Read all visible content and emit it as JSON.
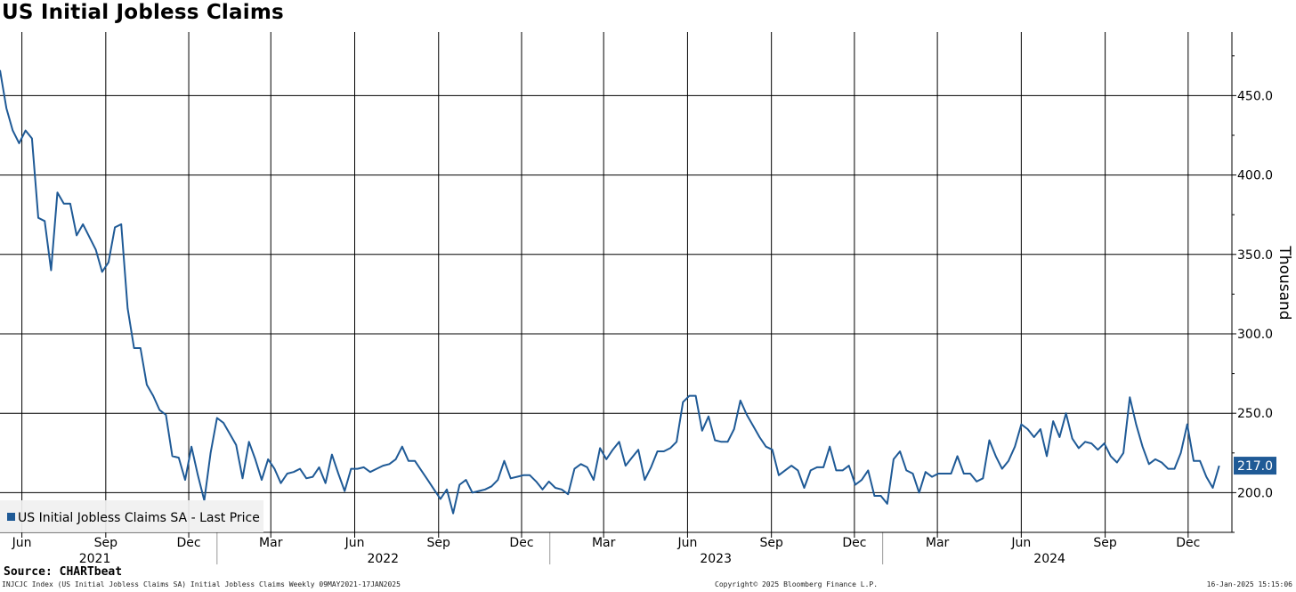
{
  "title": "US Initial Jobless Claims",
  "source": "Source: CHARTbeat",
  "footer": {
    "left": "INJCJC Index (US Initial Jobless Claims SA) Initial Jobless Claims  Weekly 09MAY2021-17JAN2025",
    "center": "Copyright© 2025 Bloomberg Finance L.P.",
    "right": "16-Jan-2025 15:15:06"
  },
  "colors": {
    "line": "#1f5a96",
    "grid": "#000000",
    "last_price_bg": "#1f5a96"
  },
  "chart_data": {
    "type": "line",
    "ylabel": "Thousand",
    "ylim": [
      175,
      490
    ],
    "y_ticks": [
      "450.0",
      "400.0",
      "350.0",
      "300.0",
      "250.0",
      "200.0"
    ],
    "y_tick_values": [
      450,
      400,
      350,
      300,
      250,
      200
    ],
    "x_range": [
      "2021-05-08",
      "2025-01-18"
    ],
    "grid": true,
    "legend": {
      "position": "bottom-left",
      "entries": [
        "US Initial Jobless Claims SA - Last Price"
      ]
    },
    "last_value_label": "217.0",
    "month_ticks": [
      {
        "label": "Jun",
        "date": "2021-06-01"
      },
      {
        "label": "Sep",
        "date": "2021-09-01"
      },
      {
        "label": "Dec",
        "date": "2021-12-01"
      },
      {
        "label": "Mar",
        "date": "2022-03-01"
      },
      {
        "label": "Jun",
        "date": "2022-06-01"
      },
      {
        "label": "Sep",
        "date": "2022-09-01"
      },
      {
        "label": "Dec",
        "date": "2022-12-01"
      },
      {
        "label": "Mar",
        "date": "2023-03-01"
      },
      {
        "label": "Jun",
        "date": "2023-06-01"
      },
      {
        "label": "Sep",
        "date": "2023-09-01"
      },
      {
        "label": "Dec",
        "date": "2023-12-01"
      },
      {
        "label": "Mar",
        "date": "2024-03-01"
      },
      {
        "label": "Jun",
        "date": "2024-06-01"
      },
      {
        "label": "Sep",
        "date": "2024-09-01"
      },
      {
        "label": "Dec",
        "date": "2024-12-01"
      }
    ],
    "year_labels": [
      {
        "label": "2021",
        "date": "2021-08-20"
      },
      {
        "label": "2022",
        "date": "2022-07-02"
      },
      {
        "label": "2023",
        "date": "2023-07-02"
      },
      {
        "label": "2024",
        "date": "2024-07-02"
      }
    ],
    "year_separators": [
      "2022-01-01",
      "2023-01-01",
      "2024-01-01"
    ],
    "series": [
      {
        "name": "US Initial Jobless Claims SA - Last Price",
        "start_date": "2021-05-08",
        "interval_days": 7,
        "values": [
          466,
          442,
          428,
          420,
          428,
          423,
          373,
          371,
          340,
          389,
          382,
          382,
          362,
          369,
          361,
          353,
          339,
          345,
          367,
          369,
          316,
          291,
          291,
          268,
          261,
          252,
          249,
          223,
          222,
          208,
          229,
          211,
          195,
          225,
          247,
          244,
          237,
          230,
          209,
          232,
          221,
          208,
          221,
          215,
          206,
          212,
          213,
          215,
          209,
          210,
          216,
          206,
          224,
          212,
          201,
          215,
          215,
          216,
          213,
          215,
          217,
          218,
          221,
          229,
          220,
          220,
          214,
          208,
          202,
          196,
          202,
          187,
          205,
          208,
          200,
          201,
          202,
          204,
          208,
          220,
          209,
          210,
          211,
          211,
          207,
          202,
          207,
          203,
          202,
          199,
          215,
          218,
          216,
          208,
          228,
          221,
          227,
          232,
          217,
          222,
          227,
          208,
          216,
          226,
          226,
          228,
          232,
          257,
          261,
          261,
          239,
          248,
          233,
          232,
          232,
          240,
          258,
          249,
          242,
          235,
          229,
          227,
          211,
          214,
          217,
          214,
          203,
          214,
          216,
          216,
          229,
          214,
          214,
          217,
          205,
          208,
          214,
          198,
          198,
          193,
          221,
          226,
          214,
          212,
          200,
          213,
          210,
          212,
          212,
          212,
          223,
          212,
          212,
          207,
          209,
          233,
          223,
          215,
          220,
          229,
          243,
          240,
          235,
          240,
          223,
          245,
          235,
          250,
          234,
          228,
          232,
          231,
          227,
          231,
          223,
          219,
          225,
          260,
          243,
          229,
          218,
          221,
          219,
          215,
          215,
          225,
          243,
          220,
          220,
          210,
          203,
          217
        ]
      }
    ]
  }
}
